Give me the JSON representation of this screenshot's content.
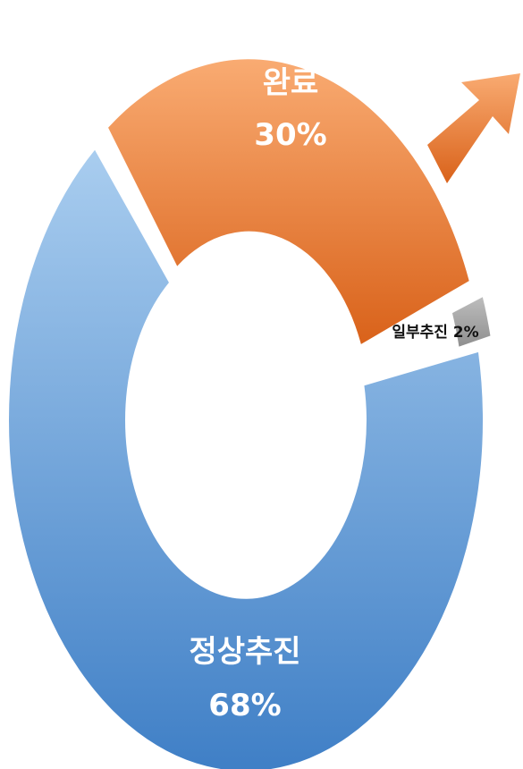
{
  "chart_data": {
    "type": "pie",
    "variant": "donut",
    "title": "",
    "categories": [
      "완료",
      "일부추진",
      "정상추진"
    ],
    "values": [
      30,
      2,
      68
    ],
    "unit": "%",
    "labels": {
      "done_name": "완료",
      "done_value": "30%",
      "partial_text": "일부추진 2%",
      "normal_name": "정상추진",
      "normal_value": "68%"
    },
    "colors": {
      "done": "#e8772f",
      "partial": "#a6a6a6",
      "normal": "#5b9bd5"
    },
    "legend": "none",
    "grid": false
  }
}
